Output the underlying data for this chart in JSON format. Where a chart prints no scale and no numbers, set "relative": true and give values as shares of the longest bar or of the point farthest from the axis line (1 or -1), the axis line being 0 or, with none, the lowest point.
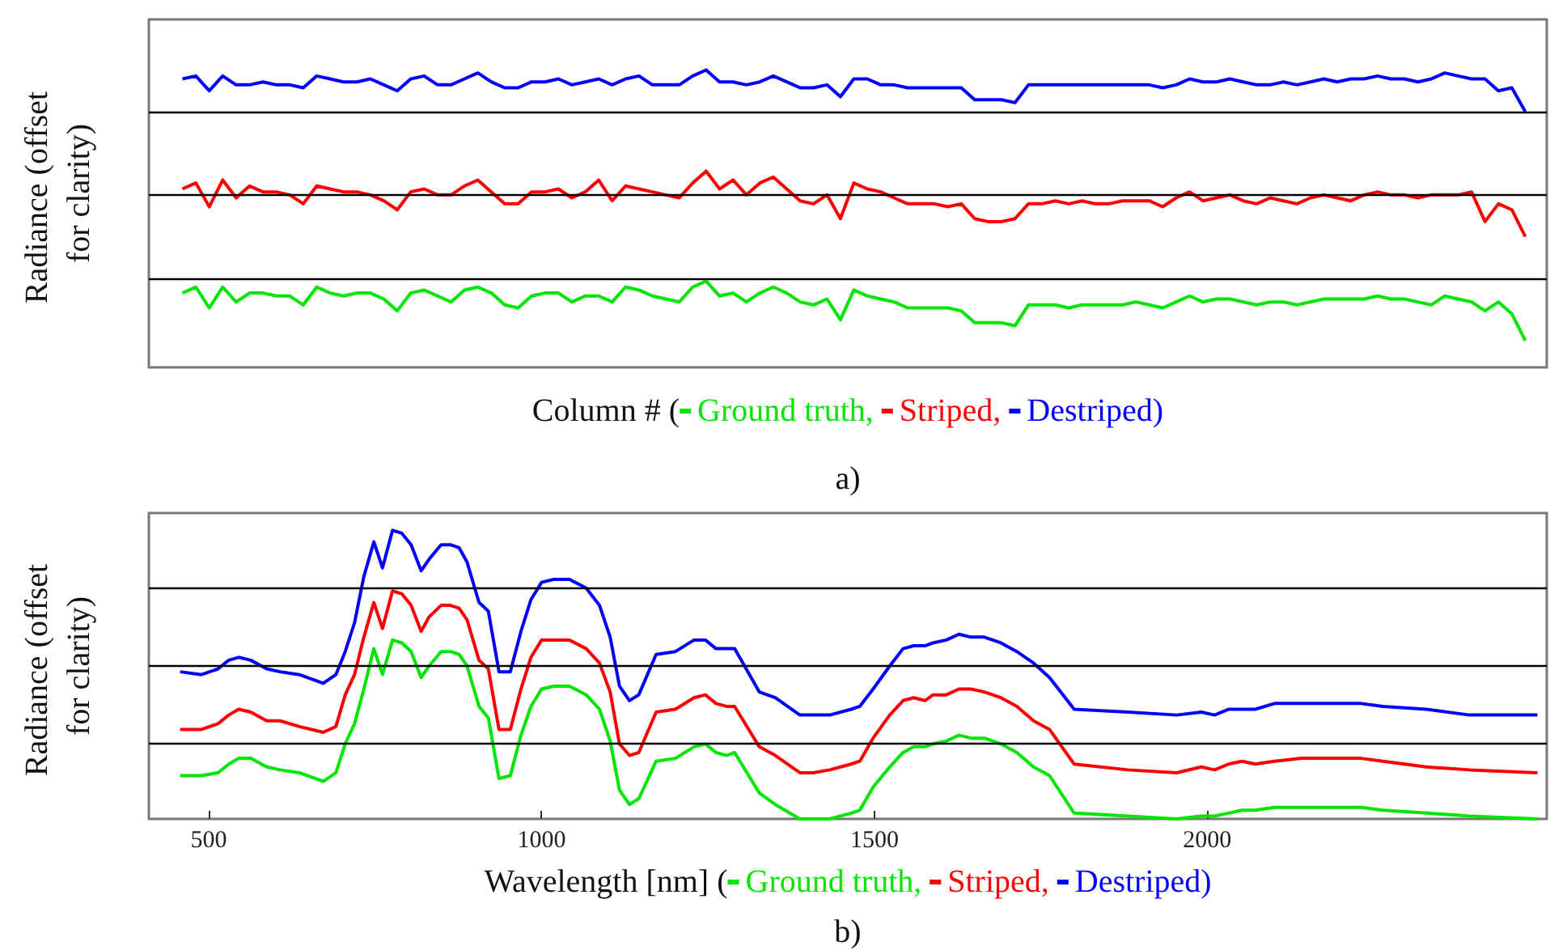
{
  "chart_data": [
    {
      "type": "line",
      "relative": true,
      "xlabel": "Column # (",
      "ylabel": "Radiance (offset for clarity)",
      "annotations": [
        "a)"
      ],
      "legend": "bottom",
      "marker": "none",
      "tick_labels": false,
      "categories": [
        null,
        null,
        null,
        null,
        null,
        null,
        null,
        null,
        null,
        null,
        null,
        null,
        null,
        null,
        null,
        null,
        null,
        null,
        null,
        null,
        null,
        null,
        null,
        null,
        null,
        null,
        null,
        null,
        null,
        null,
        null,
        null,
        null,
        null,
        null,
        null,
        null,
        null,
        null,
        null,
        null,
        null,
        null,
        null,
        null,
        null,
        null,
        null,
        null,
        null,
        null,
        null,
        null,
        null,
        null,
        null,
        null,
        null,
        null,
        null,
        null,
        null,
        null,
        null,
        null,
        null,
        null,
        null,
        null,
        null,
        null,
        null,
        null,
        null,
        null,
        null,
        null,
        null,
        null,
        null,
        null,
        null,
        null,
        null,
        null,
        null,
        null,
        null,
        null,
        null,
        null,
        null,
        null,
        null,
        null,
        null,
        null,
        null,
        null,
        null,
        null
      ],
      "ref_lines": [
        {
          "axis": "y",
          "value": 0.86,
          "color": "#000000"
        },
        {
          "axis": "y",
          "value": 0.58,
          "color": "#000000"
        },
        {
          "axis": "y",
          "value": 0.3,
          "color": "#000000"
        }
      ],
      "series": [
        {
          "name": "Ground truth,",
          "color": "#00e600",
          "values": [
            0.25,
            0.27,
            0.2,
            0.27,
            0.22,
            0.25,
            0.25,
            0.24,
            0.24,
            0.21,
            0.27,
            0.25,
            0.24,
            0.25,
            0.25,
            0.23,
            0.19,
            0.25,
            0.26,
            0.24,
            0.22,
            0.26,
            0.27,
            0.25,
            0.21,
            0.2,
            0.24,
            0.25,
            0.25,
            0.22,
            0.24,
            0.24,
            0.22,
            0.27,
            0.26,
            0.24,
            0.23,
            0.22,
            0.27,
            0.29,
            0.24,
            0.25,
            0.22,
            0.25,
            0.27,
            0.25,
            0.22,
            0.21,
            0.23,
            0.16,
            0.26,
            0.24,
            0.23,
            0.22,
            0.2,
            0.2,
            0.2,
            0.2,
            0.19,
            0.15,
            0.15,
            0.15,
            0.14,
            0.21,
            0.21,
            0.21,
            0.2,
            0.21,
            0.21,
            0.21,
            0.21,
            0.22,
            0.21,
            0.2,
            0.22,
            0.24,
            0.22,
            0.23,
            0.23,
            0.22,
            0.21,
            0.22,
            0.22,
            0.21,
            0.22,
            0.23,
            0.23,
            0.23,
            0.23,
            0.24,
            0.23,
            0.23,
            0.22,
            0.21,
            0.24,
            0.23,
            0.22,
            0.19,
            0.22,
            0.18,
            0.09
          ]
        },
        {
          "name": "Striped,",
          "color": "#ff0000",
          "values": [
            0.6,
            0.62,
            0.54,
            0.63,
            0.57,
            0.61,
            0.59,
            0.59,
            0.58,
            0.55,
            0.61,
            0.6,
            0.59,
            0.59,
            0.58,
            0.56,
            0.53,
            0.59,
            0.6,
            0.58,
            0.58,
            0.61,
            0.63,
            0.59,
            0.55,
            0.55,
            0.59,
            0.59,
            0.6,
            0.57,
            0.59,
            0.63,
            0.56,
            0.61,
            0.6,
            0.59,
            0.58,
            0.57,
            0.62,
            0.66,
            0.6,
            0.63,
            0.58,
            0.62,
            0.64,
            0.6,
            0.56,
            0.55,
            0.58,
            0.5,
            0.62,
            0.6,
            0.59,
            0.57,
            0.55,
            0.55,
            0.55,
            0.54,
            0.55,
            0.5,
            0.49,
            0.49,
            0.5,
            0.55,
            0.55,
            0.56,
            0.55,
            0.56,
            0.55,
            0.55,
            0.56,
            0.56,
            0.56,
            0.54,
            0.57,
            0.59,
            0.56,
            0.57,
            0.58,
            0.56,
            0.55,
            0.57,
            0.56,
            0.55,
            0.57,
            0.58,
            0.57,
            0.56,
            0.58,
            0.59,
            0.58,
            0.58,
            0.57,
            0.58,
            0.58,
            0.58,
            0.59,
            0.49,
            0.55,
            0.53,
            0.44
          ]
        },
        {
          "name": "Destriped)",
          "color": "#0000ff",
          "values": [
            0.97,
            0.98,
            0.93,
            0.98,
            0.95,
            0.95,
            0.96,
            0.95,
            0.95,
            0.94,
            0.98,
            0.97,
            0.96,
            0.96,
            0.97,
            0.95,
            0.93,
            0.97,
            0.98,
            0.95,
            0.95,
            0.97,
            0.99,
            0.96,
            0.94,
            0.94,
            0.96,
            0.96,
            0.97,
            0.95,
            0.96,
            0.97,
            0.95,
            0.97,
            0.98,
            0.95,
            0.95,
            0.95,
            0.98,
            1.0,
            0.96,
            0.96,
            0.95,
            0.96,
            0.98,
            0.96,
            0.94,
            0.94,
            0.95,
            0.91,
            0.97,
            0.97,
            0.95,
            0.95,
            0.94,
            0.94,
            0.94,
            0.94,
            0.94,
            0.9,
            0.9,
            0.9,
            0.89,
            0.95,
            0.95,
            0.95,
            0.95,
            0.95,
            0.95,
            0.95,
            0.95,
            0.95,
            0.95,
            0.94,
            0.95,
            0.97,
            0.96,
            0.96,
            0.97,
            0.96,
            0.95,
            0.95,
            0.96,
            0.95,
            0.96,
            0.97,
            0.96,
            0.97,
            0.97,
            0.98,
            0.97,
            0.97,
            0.96,
            0.97,
            0.99,
            0.98,
            0.97,
            0.97,
            0.93,
            0.94,
            0.86
          ]
        }
      ]
    },
    {
      "type": "line",
      "relative": true,
      "xlabel": "Wavelength [nm] (",
      "ylabel": "Radiance (offset for clarity)",
      "annotations": [
        "b)"
      ],
      "legend": "bottom",
      "marker": "none",
      "tick_labels": "x",
      "xlim": [
        410,
        2510
      ],
      "xticks": [
        500,
        1000,
        1500,
        2000
      ],
      "x": [
        457,
        489,
        514,
        530,
        545,
        563,
        587,
        607,
        636,
        672,
        691,
        705,
        719,
        733,
        748,
        761,
        776,
        790,
        804,
        819,
        831,
        849,
        863,
        876,
        888,
        906,
        920,
        936,
        953,
        969,
        984,
        1000,
        1018,
        1042,
        1067,
        1087,
        1103,
        1117,
        1132,
        1146,
        1172,
        1201,
        1229,
        1246,
        1262,
        1278,
        1290,
        1327,
        1351,
        1388,
        1408,
        1433,
        1465,
        1478,
        1498,
        1523,
        1543,
        1559,
        1576,
        1588,
        1608,
        1627,
        1645,
        1665,
        1690,
        1714,
        1739,
        1763,
        1800,
        1881,
        1954,
        1991,
        2011,
        2032,
        2052,
        2072,
        2101,
        2142,
        2182,
        2231,
        2264,
        2329,
        2394,
        2496
      ],
      "ref_lines": [
        {
          "axis": "y",
          "value": 0.8,
          "color": "#000000"
        },
        {
          "axis": "y",
          "value": 0.53,
          "color": "#000000"
        },
        {
          "axis": "y",
          "value": 0.26,
          "color": "#000000"
        }
      ],
      "series": [
        {
          "name": "Ground truth,",
          "color": "#00e600",
          "values": [
            0.15,
            0.15,
            0.16,
            0.19,
            0.21,
            0.21,
            0.18,
            0.17,
            0.16,
            0.13,
            0.16,
            0.26,
            0.33,
            0.45,
            0.59,
            0.5,
            0.62,
            0.61,
            0.58,
            0.49,
            0.53,
            0.58,
            0.58,
            0.57,
            0.53,
            0.39,
            0.35,
            0.14,
            0.15,
            0.29,
            0.39,
            0.45,
            0.46,
            0.46,
            0.43,
            0.38,
            0.27,
            0.1,
            0.05,
            0.07,
            0.2,
            0.21,
            0.25,
            0.26,
            0.23,
            0.22,
            0.23,
            0.09,
            0.05,
            0,
            0,
            0.0,
            0.02,
            0.03,
            0.11,
            0.18,
            0.23,
            0.25,
            0.25,
            0.26,
            0.27,
            0.29,
            0.28,
            0.28,
            0.26,
            0.23,
            0.18,
            0.15,
            0.02,
            0.01,
            0,
            0.01,
            0.01,
            0.02,
            0.03,
            0.03,
            0.04,
            0.04,
            0.04,
            0.04,
            0.03,
            0.02,
            0.01,
            0
          ]
        },
        {
          "name": "Striped,",
          "color": "#ff0000",
          "values": [
            0.31,
            0.31,
            0.33,
            0.36,
            0.38,
            0.37,
            0.34,
            0.34,
            0.32,
            0.3,
            0.32,
            0.43,
            0.5,
            0.63,
            0.75,
            0.66,
            0.79,
            0.78,
            0.74,
            0.65,
            0.7,
            0.74,
            0.74,
            0.73,
            0.69,
            0.55,
            0.52,
            0.31,
            0.31,
            0.45,
            0.56,
            0.62,
            0.62,
            0.62,
            0.59,
            0.54,
            0.44,
            0.26,
            0.22,
            0.23,
            0.37,
            0.38,
            0.42,
            0.43,
            0.4,
            0.39,
            0.39,
            0.25,
            0.22,
            0.16,
            0.16,
            0.17,
            0.19,
            0.2,
            0.28,
            0.36,
            0.41,
            0.42,
            0.41,
            0.43,
            0.43,
            0.45,
            0.45,
            0.44,
            0.42,
            0.39,
            0.34,
            0.31,
            0.19,
            0.17,
            0.16,
            0.18,
            0.17,
            0.19,
            0.2,
            0.19,
            0.2,
            0.21,
            0.21,
            0.21,
            0.2,
            0.18,
            0.17,
            0.16
          ]
        },
        {
          "name": "Destriped)",
          "color": "#0000ff",
          "values": [
            0.51,
            0.5,
            0.52,
            0.55,
            0.56,
            0.55,
            0.52,
            0.51,
            0.5,
            0.47,
            0.5,
            0.58,
            0.68,
            0.84,
            0.96,
            0.87,
            1.0,
            0.99,
            0.95,
            0.86,
            0.9,
            0.95,
            0.95,
            0.94,
            0.89,
            0.75,
            0.72,
            0.51,
            0.51,
            0.65,
            0.76,
            0.82,
            0.83,
            0.83,
            0.8,
            0.74,
            0.63,
            0.46,
            0.41,
            0.43,
            0.57,
            0.58,
            0.62,
            0.62,
            0.59,
            0.59,
            0.59,
            0.44,
            0.42,
            0.36,
            0.36,
            0.36,
            0.38,
            0.39,
            0.45,
            0.53,
            0.59,
            0.6,
            0.6,
            0.61,
            0.62,
            0.64,
            0.63,
            0.63,
            0.61,
            0.58,
            0.54,
            0.49,
            0.38,
            0.37,
            0.36,
            0.37,
            0.36,
            0.38,
            0.38,
            0.38,
            0.4,
            0.4,
            0.4,
            0.4,
            0.39,
            0.38,
            0.36,
            0.36
          ]
        }
      ]
    }
  ]
}
